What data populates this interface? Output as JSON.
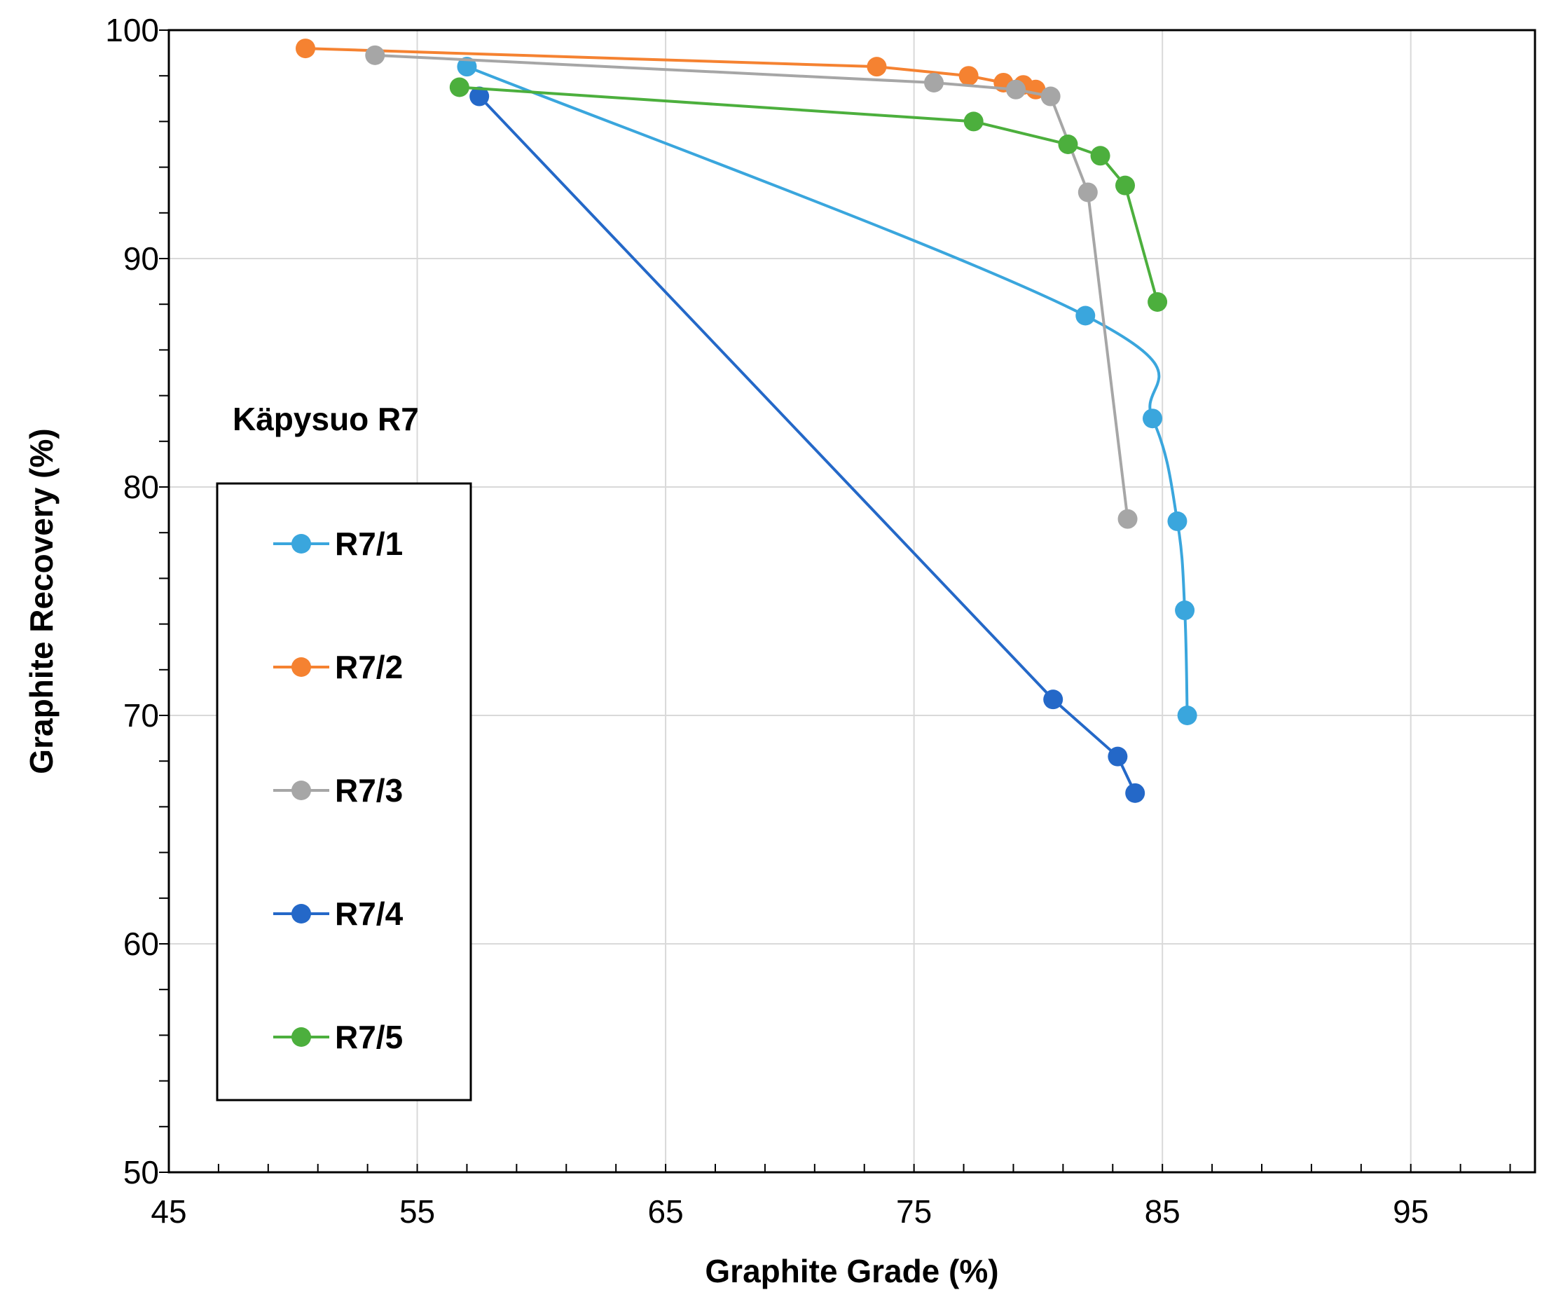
{
  "chart_data": {
    "type": "line",
    "title": "",
    "annotation": "Käpysuo R7",
    "xlabel": "Graphite Grade (%)",
    "ylabel": "Graphite Recovery (%)",
    "xlim": [
      45,
      100
    ],
    "ylim": [
      50,
      100
    ],
    "x_ticks": [
      "45",
      "55",
      "65",
      "75",
      "85",
      "95"
    ],
    "y_ticks": [
      "50",
      "60",
      "70",
      "80",
      "90",
      "100"
    ],
    "grid": true,
    "legend_position": "left",
    "series": [
      {
        "name": "R7/1",
        "color": "#3aa6dd",
        "smooth": true,
        "x": [
          57.0,
          81.9,
          84.6,
          85.6,
          85.9,
          86.0
        ],
        "y": [
          98.4,
          87.5,
          83.0,
          78.5,
          74.6,
          70.0
        ]
      },
      {
        "name": "R7/2",
        "color": "#f58231",
        "smooth": false,
        "x": [
          50.5,
          73.5,
          77.2,
          78.6,
          79.4,
          79.9
        ],
        "y": [
          99.2,
          98.4,
          98.0,
          97.7,
          97.6,
          97.4
        ]
      },
      {
        "name": "R7/3",
        "color": "#a6a6a6",
        "smooth": false,
        "x": [
          53.3,
          75.8,
          79.1,
          80.5,
          82.0,
          83.6
        ],
        "y": [
          98.9,
          97.7,
          97.4,
          97.1,
          92.9,
          78.6
        ]
      },
      {
        "name": "R7/4",
        "color": "#2468c8",
        "smooth": false,
        "x": [
          57.5,
          80.6,
          83.2,
          83.9
        ],
        "y": [
          97.1,
          70.7,
          68.2,
          66.6
        ]
      },
      {
        "name": "R7/5",
        "color": "#4caf3d",
        "smooth": false,
        "x": [
          56.7,
          77.4,
          81.2,
          82.5,
          83.5,
          84.8
        ],
        "y": [
          97.5,
          96.0,
          95.0,
          94.5,
          93.2,
          88.1
        ]
      }
    ]
  }
}
